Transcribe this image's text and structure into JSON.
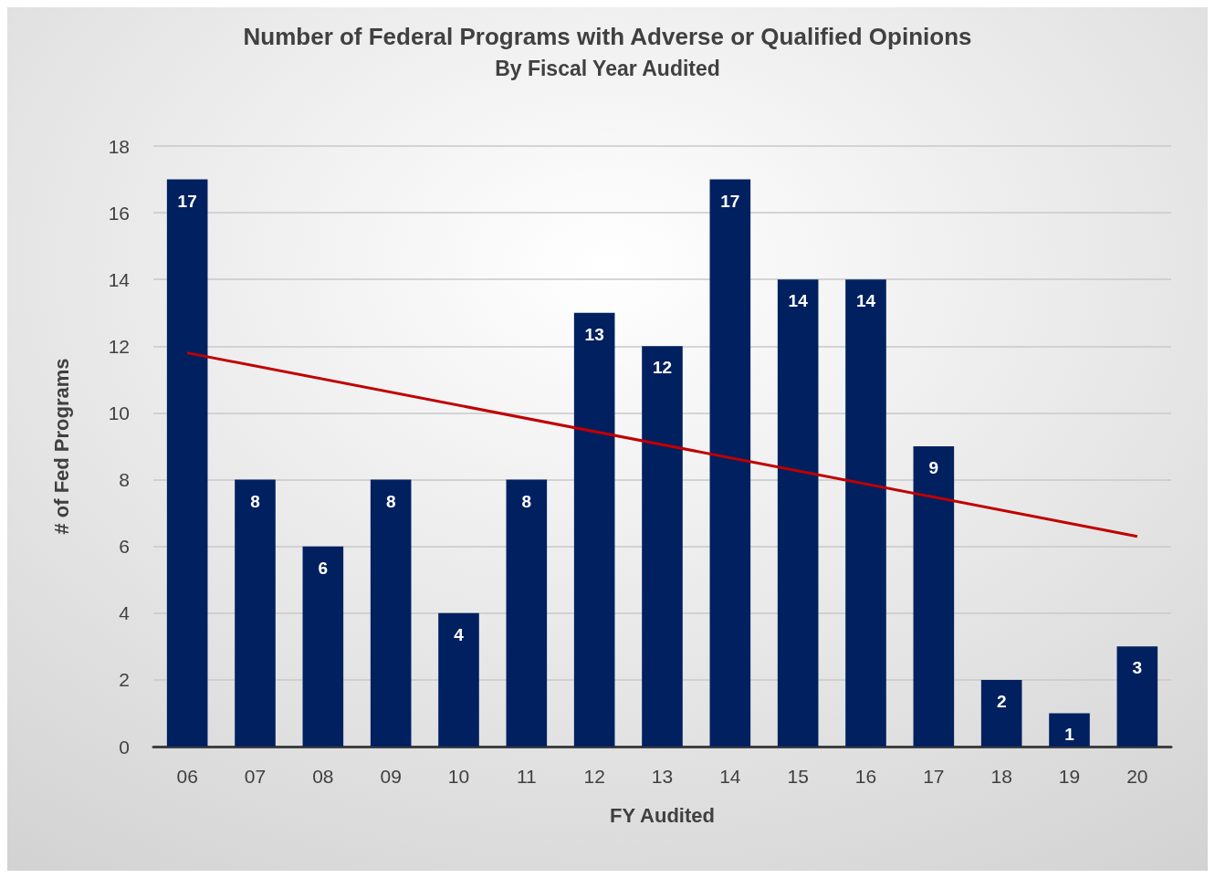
{
  "chart_data": {
    "type": "bar",
    "title": "Number of Federal Programs with Adverse or Qualified Opinions",
    "subtitle": "By Fiscal Year Audited",
    "xlabel": "FY Audited",
    "ylabel": "# of Fed Programs",
    "categories": [
      "06",
      "07",
      "08",
      "09",
      "10",
      "11",
      "12",
      "13",
      "14",
      "15",
      "16",
      "17",
      "18",
      "19",
      "20"
    ],
    "series": [
      {
        "color": "#002060",
        "values": [
          17,
          8,
          6,
          8,
          4,
          8,
          13,
          12,
          17,
          14,
          14,
          9,
          2,
          1,
          3
        ],
        "value_labels": [
          "17",
          "8",
          "6",
          "8",
          "4",
          "8",
          "13",
          "12",
          "17",
          "14",
          "14",
          "9",
          "2",
          "1",
          "3"
        ]
      },
      {
        "type": "line",
        "color": "#c00000",
        "x": [
          "06",
          "20"
        ],
        "values": [
          11.8,
          6.3
        ]
      }
    ],
    "ylim": [
      0,
      18
    ],
    "yticks": [
      0,
      2,
      4,
      6,
      8,
      10,
      12,
      14,
      16,
      18
    ],
    "grid": "y",
    "marker": "none",
    "line_style": "solid"
  }
}
